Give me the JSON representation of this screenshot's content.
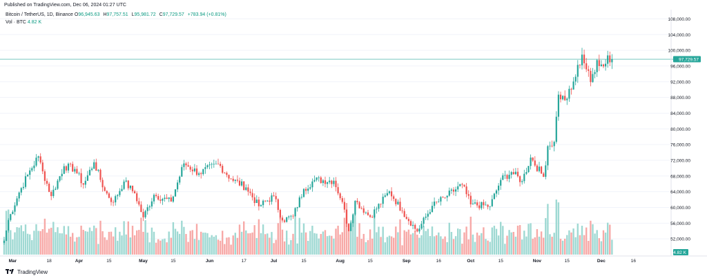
{
  "header": {
    "published": "Published on TradingView.com, Dec 06, 2024 01:27 UTC"
  },
  "legend": {
    "symbol": "Bitcoin / TetherUS, 1D, Binance",
    "open_label": "O",
    "open": "96,945.63",
    "high_label": "H",
    "high": "97,757.51",
    "low_label": "L",
    "low": "95,981.72",
    "close_label": "C",
    "close": "97,729.57",
    "change": "+783.94 (+0.81%)",
    "volume_label": "Vol · BTC",
    "volume": "4.82 K"
  },
  "footer": {
    "brand": "TradingView"
  },
  "colors": {
    "up": "#26a69a",
    "down": "#ef5350",
    "up_volume": "#9fd9d3",
    "down_volume": "#f7a9a7",
    "price_line": "#26a69a",
    "grid": "#f0f3fa",
    "axis_text": "#131722"
  },
  "chart_data": {
    "type": "candlestick",
    "title": "Bitcoin / TetherUS, 1D, Binance",
    "interval": "1D",
    "y_axis": {
      "position": "right",
      "ticks": [
        "52,000.00",
        "56,000.00",
        "60,000.00",
        "64,000.00",
        "68,000.00",
        "72,000.00",
        "76,000.00",
        "80,000.00",
        "84,000.00",
        "88,000.00",
        "92,000.00",
        "96,000.00",
        "100,000.00",
        "104,000.00",
        "108,000.00"
      ],
      "range": [
        48000,
        110000
      ]
    },
    "x_axis": {
      "ticks": [
        "Mar",
        "18",
        "Apr",
        "15",
        "May",
        "15",
        "Jun",
        "17",
        "Jul",
        "15",
        "Aug",
        "15",
        "Sep",
        "16",
        "Oct",
        "15",
        "Nov",
        "15",
        "Dec",
        "16"
      ],
      "start_date": "2024-02-26",
      "end_date": "2024-12-06"
    },
    "last_price": 97729.57,
    "last_price_label": "97,729.57",
    "last_volume_label": "4.82 K",
    "close_anchors": [
      [
        "2024-02-26",
        51500
      ],
      [
        "2024-02-28",
        56800
      ],
      [
        "2024-03-04",
        63800
      ],
      [
        "2024-03-08",
        68300
      ],
      [
        "2024-03-13",
        73000
      ],
      [
        "2024-03-15",
        69200
      ],
      [
        "2024-03-19",
        62900
      ],
      [
        "2024-03-25",
        70500
      ],
      [
        "2024-03-30",
        69800
      ],
      [
        "2024-04-03",
        65800
      ],
      [
        "2024-04-08",
        71500
      ],
      [
        "2024-04-13",
        64200
      ],
      [
        "2024-04-17",
        61300
      ],
      [
        "2024-04-22",
        66600
      ],
      [
        "2024-04-27",
        63600
      ],
      [
        "2024-05-01",
        57500
      ],
      [
        "2024-05-06",
        63200
      ],
      [
        "2024-05-14",
        61500
      ],
      [
        "2024-05-20",
        71200
      ],
      [
        "2024-05-27",
        68700
      ],
      [
        "2024-06-05",
        71100
      ],
      [
        "2024-06-11",
        67300
      ],
      [
        "2024-06-18",
        65100
      ],
      [
        "2024-06-24",
        60300
      ],
      [
        "2024-07-01",
        62900
      ],
      [
        "2024-07-05",
        56700
      ],
      [
        "2024-07-10",
        57800
      ],
      [
        "2024-07-15",
        64700
      ],
      [
        "2024-07-20",
        67000
      ],
      [
        "2024-07-29",
        66800
      ],
      [
        "2024-08-02",
        61400
      ],
      [
        "2024-08-05",
        54000
      ],
      [
        "2024-08-08",
        61700
      ],
      [
        "2024-08-15",
        57600
      ],
      [
        "2024-08-24",
        64100
      ],
      [
        "2024-08-30",
        59100
      ],
      [
        "2024-09-06",
        53900
      ],
      [
        "2024-09-13",
        60400
      ],
      [
        "2024-09-20",
        63000
      ],
      [
        "2024-09-27",
        65800
      ],
      [
        "2024-10-01",
        60800
      ],
      [
        "2024-10-10",
        60300
      ],
      [
        "2024-10-15",
        67000
      ],
      [
        "2024-10-20",
        69000
      ],
      [
        "2024-10-25",
        66700
      ],
      [
        "2024-10-29",
        72700
      ],
      [
        "2024-11-04",
        67800
      ],
      [
        "2024-11-06",
        75600
      ],
      [
        "2024-11-09",
        76700
      ],
      [
        "2024-11-11",
        88700
      ],
      [
        "2024-11-14",
        87300
      ],
      [
        "2024-11-17",
        90000
      ],
      [
        "2024-11-22",
        98900
      ],
      [
        "2024-11-26",
        91900
      ],
      [
        "2024-11-29",
        97500
      ],
      [
        "2024-12-02",
        95900
      ],
      [
        "2024-12-04",
        98700
      ],
      [
        "2024-12-05",
        96945.63
      ],
      [
        "2024-12-06",
        97729.57
      ]
    ],
    "volume_range": [
      0,
      115000
    ]
  }
}
